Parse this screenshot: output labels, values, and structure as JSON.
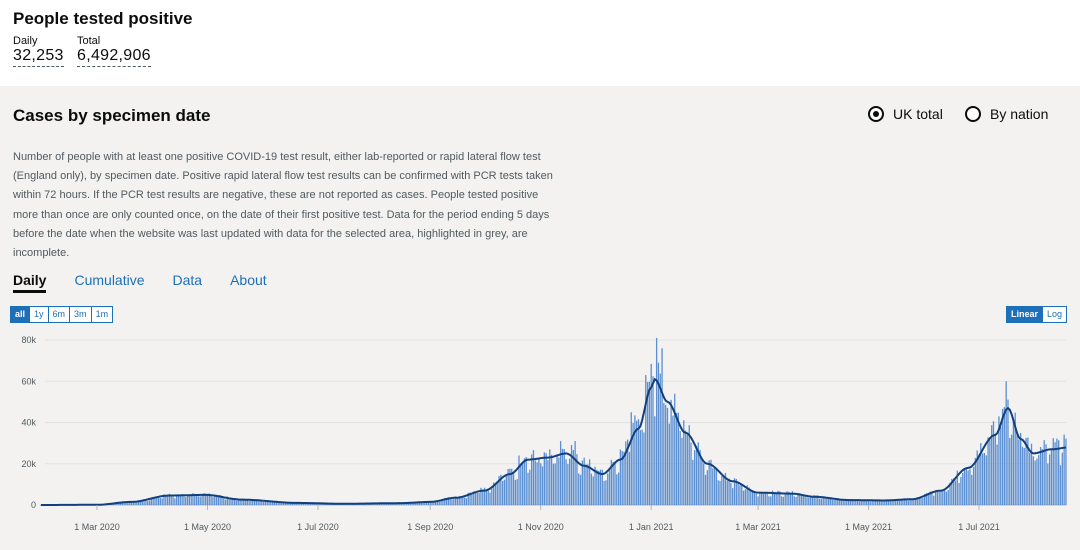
{
  "summary": {
    "title": "People tested positive",
    "daily_label": "Daily",
    "daily_value": "32,253",
    "total_label": "Total",
    "total_value": "6,492,906"
  },
  "card": {
    "title": "Cases by specimen date",
    "radio_uk": "UK total",
    "radio_nation": "By nation",
    "selected_radio": "UK total",
    "description": "Number of people with at least one positive COVID-19 test result, either lab-reported or rapid lateral flow test (England only), by specimen date. Positive rapid lateral flow test results can be confirmed with PCR tests taken within 72 hours. If the PCR test results are negative, these are not reported as cases. People tested positive more than once are only counted once, on the date of their first positive test. Data for the period ending 5 days before the date when the website was last updated with data for the selected area, highlighted in grey, are incomplete.",
    "tabs": [
      "Daily",
      "Cumulative",
      "Data",
      "About"
    ],
    "active_tab": "Daily",
    "range_buttons": [
      "all",
      "1y",
      "6m",
      "3m",
      "1m"
    ],
    "active_range": "all",
    "scale_buttons": [
      "Linear",
      "Log"
    ],
    "active_scale": "Linear"
  },
  "colors": {
    "bar": "#5b8fd1",
    "bar_incomplete": "#b1b4b6",
    "average_line": "#12407c",
    "link": "#1d70b8"
  },
  "chart_data": {
    "type": "bar",
    "series": [
      {
        "kind": "bar",
        "values": "daily new cases"
      },
      {
        "kind": "line",
        "values": "7-day average"
      }
    ],
    "x_start": "2020-01-30",
    "x_end": "2021-07-29",
    "x_ticks": [
      "1 Mar 2020",
      "1 May 2020",
      "1 Jul 2020",
      "1 Sep 2020",
      "1 Nov 2020",
      "1 Jan 2021",
      "1 Mar 2021",
      "1 May 2021",
      "1 Jul 2021"
    ],
    "y_ticks": [
      "0",
      "20k",
      "40k",
      "60k",
      "80k"
    ],
    "ylim": [
      0,
      80000
    ],
    "average_keypoints": [
      [
        "2020-01-30",
        0
      ],
      [
        "2020-03-01",
        100
      ],
      [
        "2020-03-20",
        1500
      ],
      [
        "2020-04-10",
        4600
      ],
      [
        "2020-04-30",
        4900
      ],
      [
        "2020-05-20",
        2600
      ],
      [
        "2020-06-20",
        1000
      ],
      [
        "2020-07-15",
        600
      ],
      [
        "2020-08-15",
        900
      ],
      [
        "2020-09-01",
        1500
      ],
      [
        "2020-09-15",
        3500
      ],
      [
        "2020-10-01",
        7000
      ],
      [
        "2020-10-15",
        15000
      ],
      [
        "2020-10-25",
        22000
      ],
      [
        "2020-11-05",
        23000
      ],
      [
        "2020-11-15",
        25000
      ],
      [
        "2020-11-25",
        19000
      ],
      [
        "2020-12-05",
        15000
      ],
      [
        "2020-12-15",
        22000
      ],
      [
        "2020-12-25",
        37000
      ],
      [
        "2021-01-01",
        57000
      ],
      [
        "2021-01-03",
        61000
      ],
      [
        "2021-01-10",
        50000
      ],
      [
        "2021-01-20",
        35000
      ],
      [
        "2021-02-01",
        20000
      ],
      [
        "2021-02-15",
        11500
      ],
      [
        "2021-03-01",
        6000
      ],
      [
        "2021-03-20",
        5500
      ],
      [
        "2021-04-01",
        4000
      ],
      [
        "2021-04-20",
        2400
      ],
      [
        "2021-05-10",
        2200
      ],
      [
        "2021-05-25",
        2800
      ],
      [
        "2021-06-10",
        7000
      ],
      [
        "2021-06-25",
        18000
      ],
      [
        "2021-07-10",
        34000
      ],
      [
        "2021-07-17",
        47000
      ],
      [
        "2021-07-24",
        32000
      ],
      [
        "2021-07-31",
        25000
      ],
      [
        "2021-08-10",
        27000
      ],
      [
        "2021-08-20",
        28000
      ],
      [
        "2021-08-29",
        27500
      ]
    ],
    "spikes": [
      [
        "2021-01-04",
        81000
      ],
      [
        "2021-01-07",
        76000
      ],
      [
        "2021-01-05",
        69000
      ],
      [
        "2020-12-29",
        63000
      ],
      [
        "2020-11-12",
        31000
      ],
      [
        "2020-11-20",
        31000
      ],
      [
        "2021-07-16",
        60000
      ],
      [
        "2020-10-20",
        24000
      ],
      [
        "2020-12-21",
        45000
      ],
      [
        "2021-07-12",
        43000
      ]
    ]
  }
}
